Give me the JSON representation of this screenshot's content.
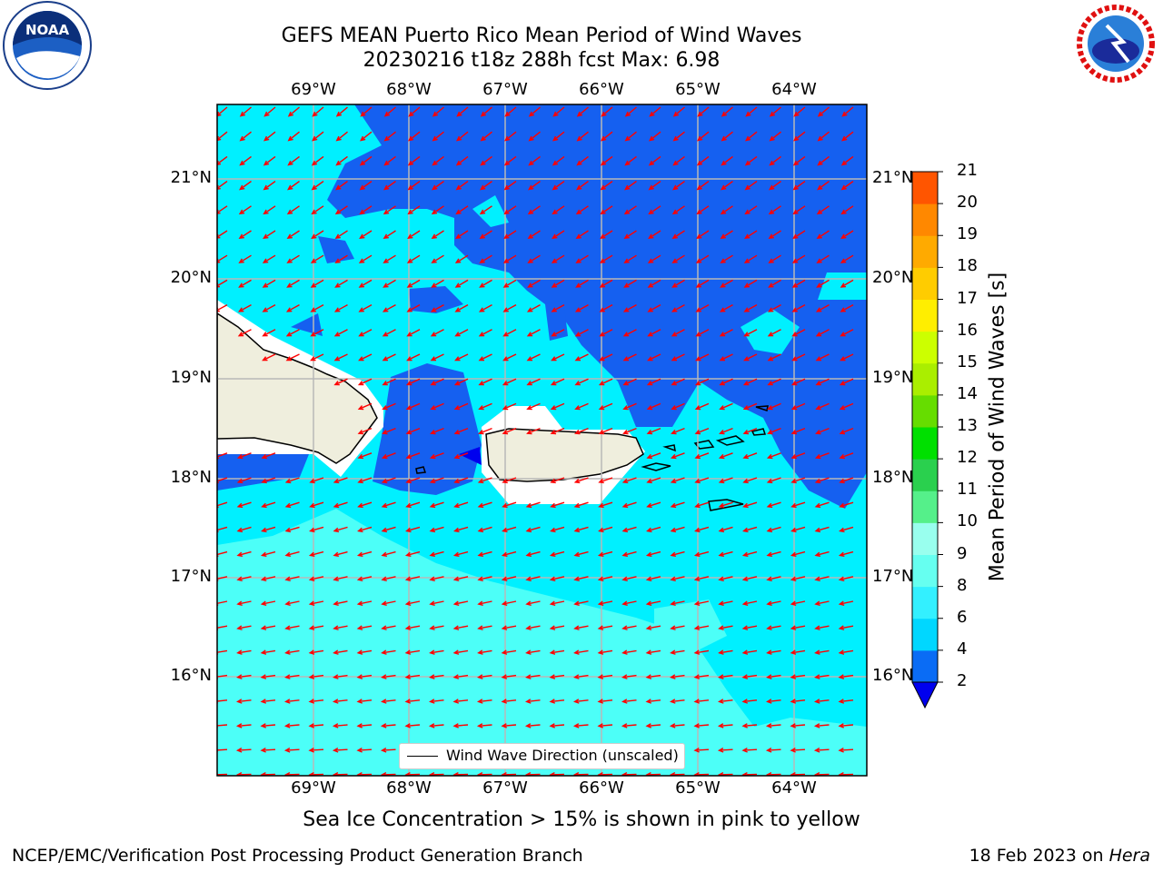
{
  "title_line1": "GEFS MEAN Puerto Rico Mean Period of Wind Waves",
  "title_line2": "20230216 t18z 288h fcst   Max: 6.98",
  "lon_labels": [
    "69°W",
    "68°W",
    "67°W",
    "66°W",
    "65°W",
    "64°W"
  ],
  "lat_labels": [
    "21°N",
    "20°N",
    "19°N",
    "18°N",
    "17°N",
    "16°N"
  ],
  "legend_label": "Wind Wave Direction (unscaled)",
  "colorbar": {
    "title": "Mean Period of Wind Waves [s]",
    "ticks": [
      "2",
      "4",
      "6",
      "8",
      "9",
      "10",
      "11",
      "12",
      "13",
      "14",
      "15",
      "16",
      "17",
      "18",
      "19",
      "20",
      "21"
    ],
    "colors": [
      "#0a6cf5",
      "#00d7ff",
      "#33f0ff",
      "#66fff0",
      "#99ffee",
      "#55f08a",
      "#2ad04e",
      "#00e000",
      "#66dd00",
      "#aaee00",
      "#ccff00",
      "#ffee00",
      "#ffcc00",
      "#ffaa00",
      "#ff8800",
      "#ff5500",
      "#ff1a00",
      "#ff0000"
    ],
    "under_color": "#0000ee"
  },
  "bottom_note": "Sea Ice Concentration > 15% is shown in pink to yellow",
  "footer_left": "NCEP/EMC/Verification Post Processing Product Generation Branch",
  "footer_date": "18 Feb 2023 on ",
  "footer_host": "Hera",
  "logos": {
    "left": {
      "name": "noaa-logo",
      "text": "NOAA"
    },
    "right": {
      "name": "nws-logo",
      "text": "NATIONAL WEATHER SERVICE"
    }
  },
  "map_colors": {
    "period_2_4": "#1560f0",
    "period_4_6": "#00f0ff",
    "period_6_8": "#4cfff8",
    "land": "#efeedd",
    "arrow": "#ff0000"
  }
}
